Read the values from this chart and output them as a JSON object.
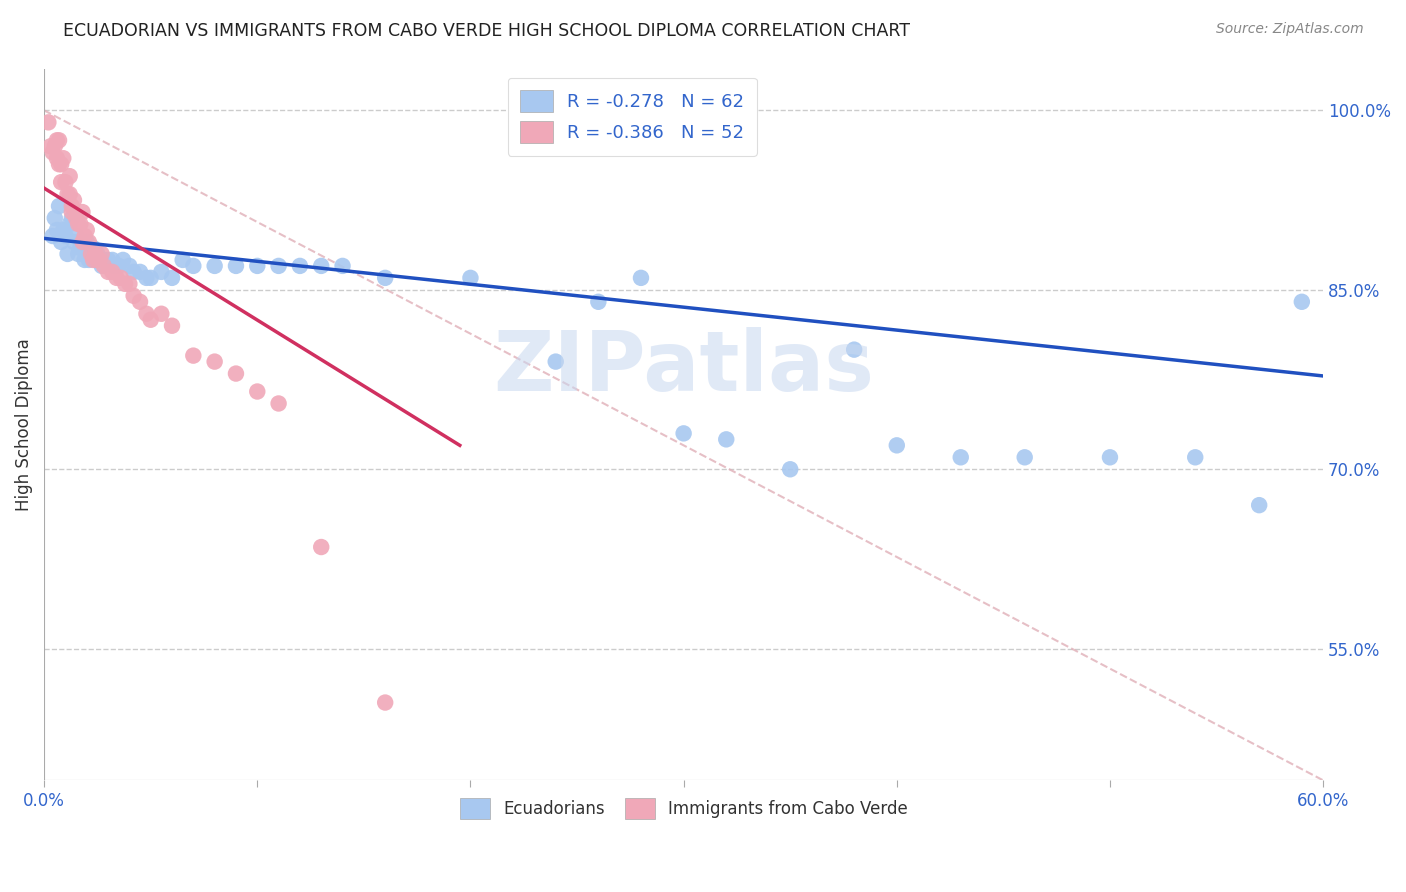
{
  "title": "ECUADORIAN VS IMMIGRANTS FROM CABO VERDE HIGH SCHOOL DIPLOMA CORRELATION CHART",
  "source_text": "Source: ZipAtlas.com",
  "ylabel": "High School Diploma",
  "right_ytick_vals": [
    0.55,
    0.7,
    0.85,
    1.0
  ],
  "right_ytick_labels": [
    "55.0%",
    "70.0%",
    "85.0%",
    "100.0%"
  ],
  "xlim": [
    0.0,
    0.6
  ],
  "ylim": [
    0.44,
    1.035
  ],
  "blue_color": "#a8c8f0",
  "pink_color": "#f0a8b8",
  "blue_line_color": "#2050c0",
  "pink_line_color": "#d03060",
  "ref_line_color": "#e0b0b8",
  "legend_text_color": "#3366cc",
  "watermark": "ZIPatlas",
  "blue_x": [
    0.004,
    0.005,
    0.006,
    0.007,
    0.008,
    0.009,
    0.01,
    0.011,
    0.012,
    0.013,
    0.014,
    0.015,
    0.016,
    0.017,
    0.018,
    0.019,
    0.02,
    0.021,
    0.022,
    0.023,
    0.024,
    0.025,
    0.026,
    0.027,
    0.028,
    0.03,
    0.032,
    0.033,
    0.035,
    0.037,
    0.04,
    0.042,
    0.045,
    0.048,
    0.05,
    0.055,
    0.06,
    0.065,
    0.07,
    0.08,
    0.09,
    0.1,
    0.11,
    0.12,
    0.13,
    0.14,
    0.16,
    0.2,
    0.24,
    0.26,
    0.28,
    0.3,
    0.32,
    0.35,
    0.38,
    0.4,
    0.43,
    0.46,
    0.5,
    0.54,
    0.57,
    0.59
  ],
  "blue_y": [
    0.895,
    0.91,
    0.9,
    0.92,
    0.89,
    0.9,
    0.895,
    0.88,
    0.905,
    0.91,
    0.89,
    0.895,
    0.88,
    0.885,
    0.885,
    0.875,
    0.89,
    0.875,
    0.88,
    0.885,
    0.875,
    0.88,
    0.875,
    0.87,
    0.875,
    0.875,
    0.875,
    0.87,
    0.87,
    0.875,
    0.87,
    0.865,
    0.865,
    0.86,
    0.86,
    0.865,
    0.86,
    0.875,
    0.87,
    0.87,
    0.87,
    0.87,
    0.87,
    0.87,
    0.87,
    0.87,
    0.86,
    0.86,
    0.79,
    0.84,
    0.86,
    0.73,
    0.725,
    0.7,
    0.8,
    0.72,
    0.71,
    0.71,
    0.71,
    0.71,
    0.67,
    0.84
  ],
  "pink_x": [
    0.002,
    0.003,
    0.004,
    0.005,
    0.006,
    0.006,
    0.007,
    0.007,
    0.008,
    0.008,
    0.009,
    0.01,
    0.011,
    0.012,
    0.012,
    0.013,
    0.013,
    0.014,
    0.015,
    0.016,
    0.017,
    0.018,
    0.018,
    0.019,
    0.02,
    0.021,
    0.022,
    0.023,
    0.024,
    0.025,
    0.026,
    0.027,
    0.028,
    0.03,
    0.032,
    0.034,
    0.036,
    0.038,
    0.04,
    0.042,
    0.045,
    0.048,
    0.05,
    0.055,
    0.06,
    0.07,
    0.08,
    0.09,
    0.1,
    0.11,
    0.13,
    0.16
  ],
  "pink_y": [
    0.99,
    0.97,
    0.965,
    0.97,
    0.96,
    0.975,
    0.955,
    0.975,
    0.955,
    0.94,
    0.96,
    0.94,
    0.93,
    0.93,
    0.945,
    0.915,
    0.92,
    0.925,
    0.91,
    0.905,
    0.905,
    0.915,
    0.89,
    0.895,
    0.9,
    0.89,
    0.88,
    0.875,
    0.88,
    0.875,
    0.875,
    0.88,
    0.87,
    0.865,
    0.865,
    0.86,
    0.86,
    0.855,
    0.855,
    0.845,
    0.84,
    0.83,
    0.825,
    0.83,
    0.82,
    0.795,
    0.79,
    0.78,
    0.765,
    0.755,
    0.635,
    0.505
  ],
  "blue_line_x": [
    0.0,
    0.6
  ],
  "blue_line_y": [
    0.893,
    0.778
  ],
  "pink_line_x": [
    0.0,
    0.195
  ],
  "pink_line_y": [
    0.935,
    0.72
  ],
  "ref_line_x": [
    0.0,
    0.6
  ],
  "ref_line_y": [
    1.0,
    0.44
  ]
}
